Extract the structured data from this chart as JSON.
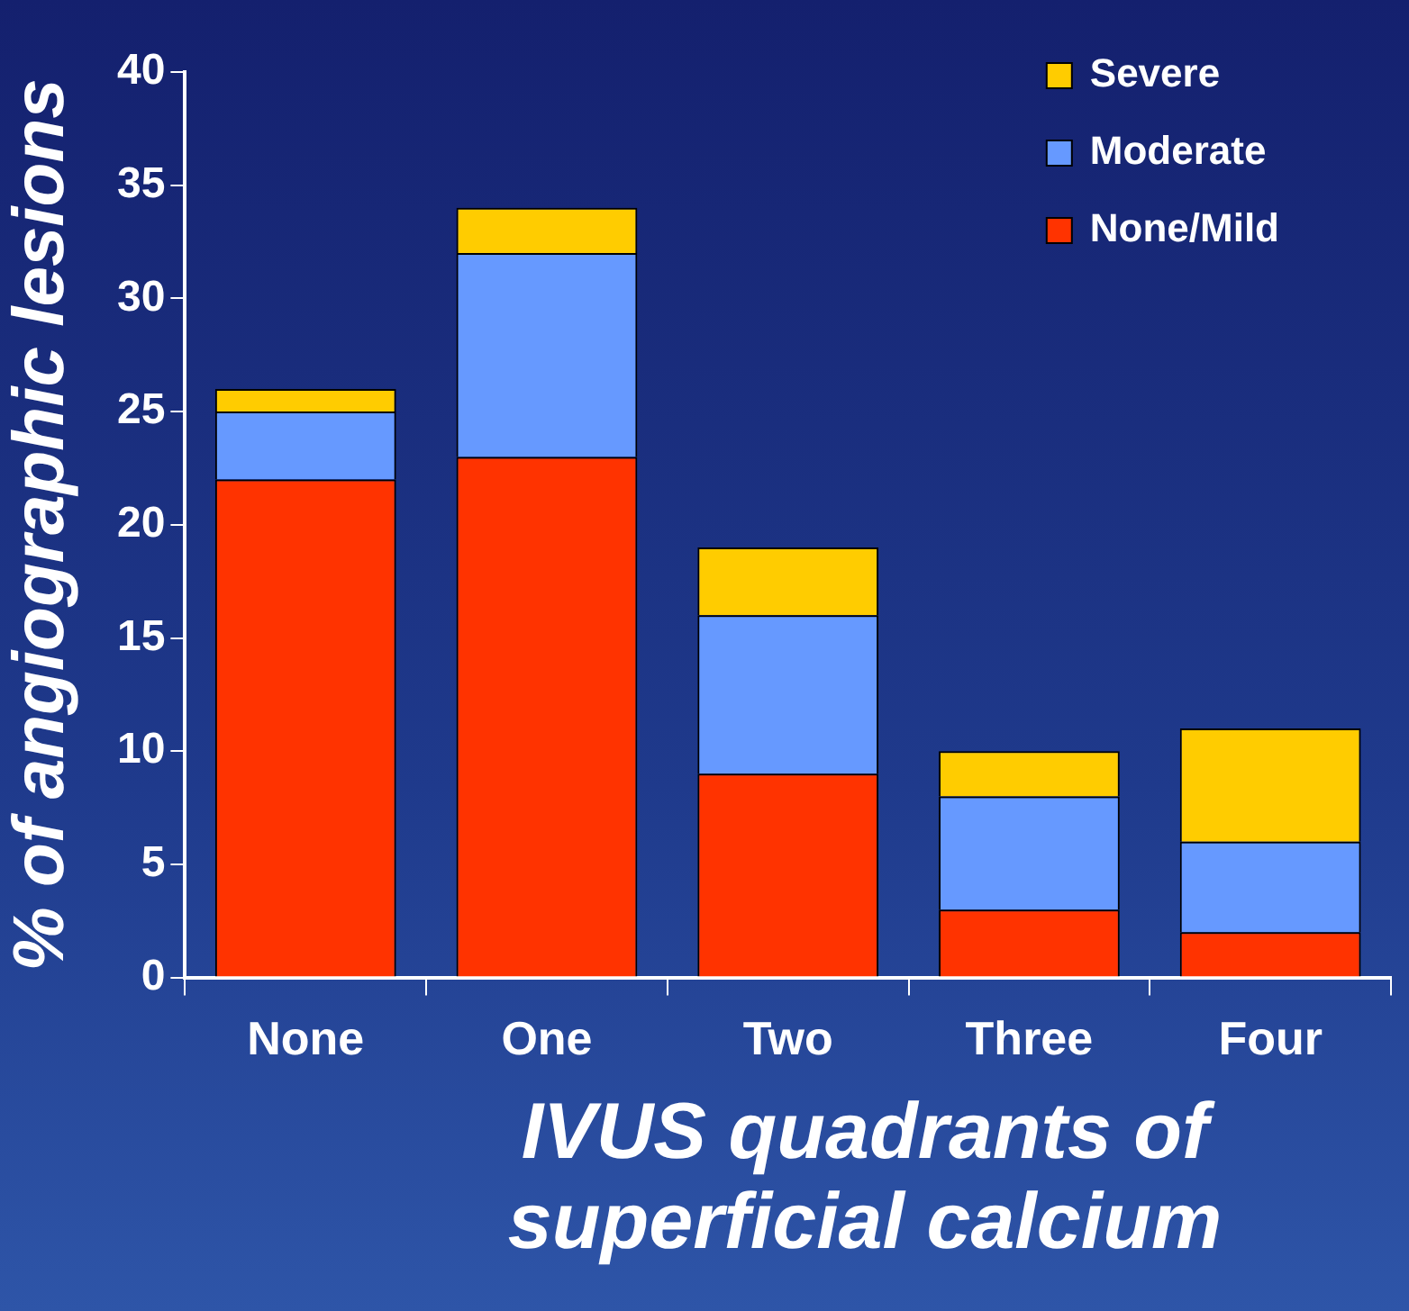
{
  "chart_data": {
    "type": "bar",
    "stacked": true,
    "xlabel": "IVUS quadrants of superficial calcium",
    "ylabel": "% of angiographic lesions",
    "categories": [
      "None",
      "One",
      "Two",
      "Three",
      "Four"
    ],
    "series": [
      {
        "name": "None/Mild",
        "color": "#ff3300",
        "values": [
          22,
          23,
          9,
          3,
          2
        ]
      },
      {
        "name": "Moderate",
        "color": "#6699ff",
        "values": [
          3,
          9,
          7,
          5,
          4
        ]
      },
      {
        "name": "Severe",
        "color": "#ffcc00",
        "values": [
          1,
          2,
          3,
          2,
          5
        ]
      }
    ],
    "ylim": [
      0,
      40
    ],
    "yticks": [
      0,
      5,
      10,
      15,
      20,
      25,
      30,
      35,
      40
    ],
    "grid": false,
    "legend": "top right"
  }
}
